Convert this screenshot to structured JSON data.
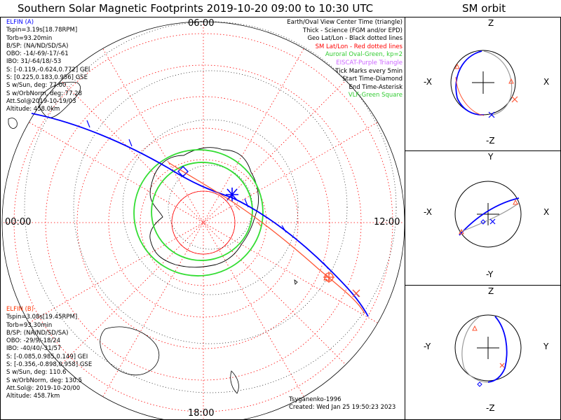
{
  "header": {
    "title": "Southern Solar Magnetic Footprints 2019-10-20 09:00 to 10:30 UTC",
    "orbit_title": "SM orbit"
  },
  "legend": [
    {
      "text": "Earth/Oval View Center Time (triangle)",
      "color": "#000000"
    },
    {
      "text": "Thick - Science (FGM and/or EPD)",
      "color": "#000000"
    },
    {
      "text": "Geo Lat/Lon - Black dotted lines",
      "color": "#000000"
    },
    {
      "text": "SM Lat/Lon - Red dotted lines",
      "color": "#ff0000"
    },
    {
      "text": "Auroral Oval-Green, kp=2",
      "color": "#33cc33"
    },
    {
      "text": "EISCAT-Purple Triangle",
      "color": "#cc66ff"
    },
    {
      "text": "Tick Marks every 5min",
      "color": "#000000"
    },
    {
      "text": "Start Time-Diamond",
      "color": "#000000"
    },
    {
      "text": "End Time-Asterisk",
      "color": "#000000"
    },
    {
      "text": "VLF-Green Square",
      "color": "#33cc33"
    }
  ],
  "map_labels": {
    "top": "06:00",
    "left": "00:00",
    "right": "12:00",
    "bottom": "18:00"
  },
  "elfin_a": {
    "title": "ELFIN (A)",
    "color": "#0000ff",
    "lines": [
      "Tspin=3.19s[18.78RPM]",
      "Torb=93.20min",
      "B/SP: (NA/ND/SD/SA)",
      "OBO: -14/-69/-17/-61",
      "IBO: 31/-64/18/-53",
      "S: [-0.119,-0.624,0.772] GEI",
      "S: [0.225,0.183,0.956] GSE",
      "S w/Sun, deg: 77.00",
      "S w/OrbNorm, deg: 77.28",
      "Att.Sol@2019-10-19/03",
      "Altitude: 458.0km"
    ]
  },
  "elfin_b": {
    "title": "ELFIN (B)",
    "color": "#ff3300",
    "lines": [
      "Tspin=3.08s[19.45RPM]",
      "Torb=93.30min",
      "B/SP: (NA/ND/SD/SA)",
      "OBO: -29/9/-18/24",
      "IBO: -40/40/-31/57",
      "S: [-0.085,0.985,0.149] GEI",
      "S: [-0.356,-0.898,0.958] GSE",
      "S w/Sun, deg: 110.6",
      "S w/OrbNorm, deg: 130.5",
      "Att.Sol@: 2019-10-20/00",
      "Altitude: 458.7km"
    ]
  },
  "footer": {
    "credit": "Tsyganenko-1996",
    "created": "Created: Wed Jan 25 19:50:23 2023"
  },
  "orbit_panels": [
    {
      "top": "Z",
      "bottom": "-Z",
      "left": "-X",
      "right": "X"
    },
    {
      "top": "Y",
      "bottom": "-Y",
      "left": "-X",
      "right": "X"
    },
    {
      "top": "Z",
      "bottom": "-Z",
      "left": "-Y",
      "right": "Y"
    }
  ],
  "colors": {
    "elfin_a": "#0000ff",
    "elfin_b": "#ff3300",
    "oval": "#33dd33",
    "sm_grid": "#ff0000",
    "geo_grid": "#000000"
  }
}
